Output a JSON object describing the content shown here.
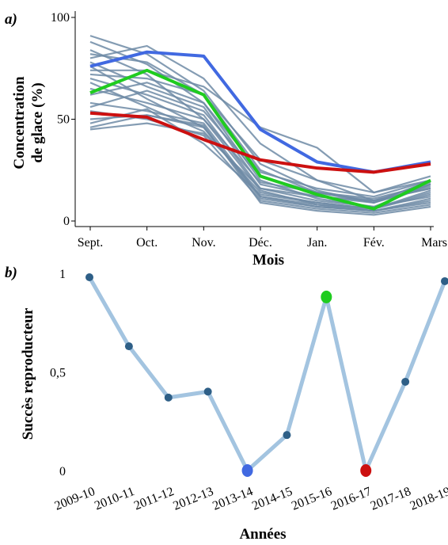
{
  "chart_data": [
    {
      "panel_label": "a)",
      "type": "line",
      "xlabel": "Mois",
      "ylabel": "Concentration de glace (%)",
      "ylabel_lines": [
        "Concentration",
        "de glace (%)"
      ],
      "categories": [
        "Sept.",
        "Oct.",
        "Nov.",
        "Déc.",
        "Jan.",
        "Fév.",
        "Mars"
      ],
      "yticks": [
        "0",
        "50",
        "100"
      ],
      "ylim": [
        0,
        100
      ],
      "background_series_color": "#6e8ba6",
      "background_series": [
        [
          91,
          82,
          64,
          28,
          15,
          9,
          20
        ],
        [
          88,
          77,
          58,
          20,
          11,
          7,
          18
        ],
        [
          84,
          72,
          50,
          15,
          8,
          6,
          15
        ],
        [
          82,
          78,
          62,
          25,
          14,
          10,
          19
        ],
        [
          80,
          86,
          70,
          38,
          20,
          14,
          22
        ],
        [
          78,
          66,
          56,
          18,
          12,
          9,
          17
        ],
        [
          76,
          60,
          46,
          12,
          8,
          5,
          10
        ],
        [
          74,
          74,
          66,
          46,
          36,
          14,
          20
        ],
        [
          72,
          70,
          62,
          30,
          20,
          10,
          16
        ],
        [
          70,
          62,
          52,
          16,
          10,
          7,
          12
        ],
        [
          68,
          56,
          44,
          14,
          9,
          6,
          14
        ],
        [
          65,
          58,
          50,
          19,
          14,
          11,
          18
        ],
        [
          62,
          68,
          58,
          24,
          16,
          12,
          20
        ],
        [
          58,
          54,
          48,
          12,
          7,
          5,
          9
        ],
        [
          56,
          64,
          54,
          22,
          14,
          9,
          18
        ],
        [
          54,
          50,
          42,
          10,
          6,
          4,
          8
        ],
        [
          50,
          52,
          46,
          11,
          7,
          5,
          11
        ],
        [
          48,
          55,
          38,
          13,
          9,
          6,
          13
        ],
        [
          46,
          52,
          47,
          9,
          5,
          3,
          7
        ],
        [
          45,
          48,
          43,
          16,
          12,
          10,
          16
        ]
      ],
      "highlight_series": [
        {
          "color": "#4169e1",
          "values": [
            76,
            83,
            81,
            45,
            29,
            24,
            29
          ]
        },
        {
          "color": "#1fcc1f",
          "values": [
            63,
            74,
            62,
            22,
            13,
            6,
            20
          ]
        },
        {
          "color": "#cc1010",
          "values": [
            53,
            51,
            40,
            30,
            26,
            24,
            28
          ]
        }
      ]
    },
    {
      "panel_label": "b)",
      "type": "line",
      "xlabel": "Années",
      "ylabel": "Succès reproducteur",
      "categories": [
        "2009-10",
        "2010-11",
        "2011-12",
        "2012-13",
        "2013-14",
        "2014-15",
        "2015-16",
        "2016-17",
        "2017-18",
        "2018-19"
      ],
      "yticks": [
        "0",
        "0,5",
        "1"
      ],
      "ylim": [
        0,
        1
      ],
      "line_color": "#a3c4e0",
      "point_color": "#2e5f87",
      "values": [
        0.98,
        0.63,
        0.37,
        0.4,
        0.0,
        0.18,
        0.88,
        0.0,
        0.45,
        0.96
      ],
      "highlight_points": {
        "4": "#4169e1",
        "6": "#1fcc1f",
        "7": "#cc1010"
      }
    }
  ]
}
